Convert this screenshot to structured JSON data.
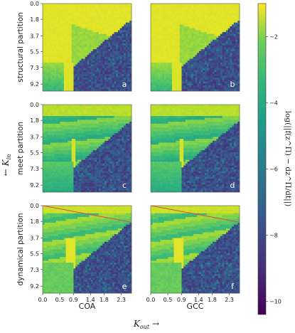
{
  "chart_data": {
    "type": "heatmap",
    "rows": [
      {
        "name": "structural partition",
        "label": "structural partition"
      },
      {
        "name": "meet partition",
        "label": "meet partition"
      },
      {
        "name": "dynamical partition",
        "label": "dynamical partition"
      }
    ],
    "columns": [
      {
        "name": "COA",
        "label": "COA"
      },
      {
        "name": "GCC",
        "label": "GCC"
      }
    ],
    "panel_letters": [
      "a",
      "b",
      "c",
      "d",
      "e",
      "f"
    ],
    "xlabel": "K_out →",
    "ylabel": "← K_in",
    "x_ticks": [
      "0.0",
      "0.5",
      "0.9",
      "1.4",
      "1.8",
      "2.3"
    ],
    "y_ticks": [
      "0.0",
      "1.8",
      "3.7",
      "5.5",
      "7.3",
      "9.2"
    ],
    "xlim": [
      0.0,
      2.6
    ],
    "ylim_top_to_bottom": [
      0.0,
      10.0
    ],
    "colorbar": {
      "label": "log(||f(z^Π) − dz^Π/dt||)",
      "ticks": [
        -2,
        -4,
        -6,
        -8,
        -10
      ],
      "range": [
        -10.4,
        -1.0
      ],
      "colormap": "viridis"
    },
    "red_line": {
      "panels": [
        "e",
        "f"
      ],
      "color": "#d9534f",
      "from": [
        0.0,
        0.0
      ],
      "to": [
        2.6,
        1.9
      ]
    },
    "values_grid_note": "",
    "colors": {
      "viridis_low": "#440154",
      "viridis_mid": "#21918c",
      "viridis_high": "#fde725",
      "red": "#d9534f"
    }
  },
  "labels": {
    "xlabel_var": "K",
    "xlabel_sub": "out",
    "xlabel_arrow": "→",
    "ylabel_arrow": "←",
    "ylabel_var": "K",
    "ylabel_sub": "in",
    "cbar_label": "log(||f(z^Π) − dz^Π/dt||)"
  }
}
